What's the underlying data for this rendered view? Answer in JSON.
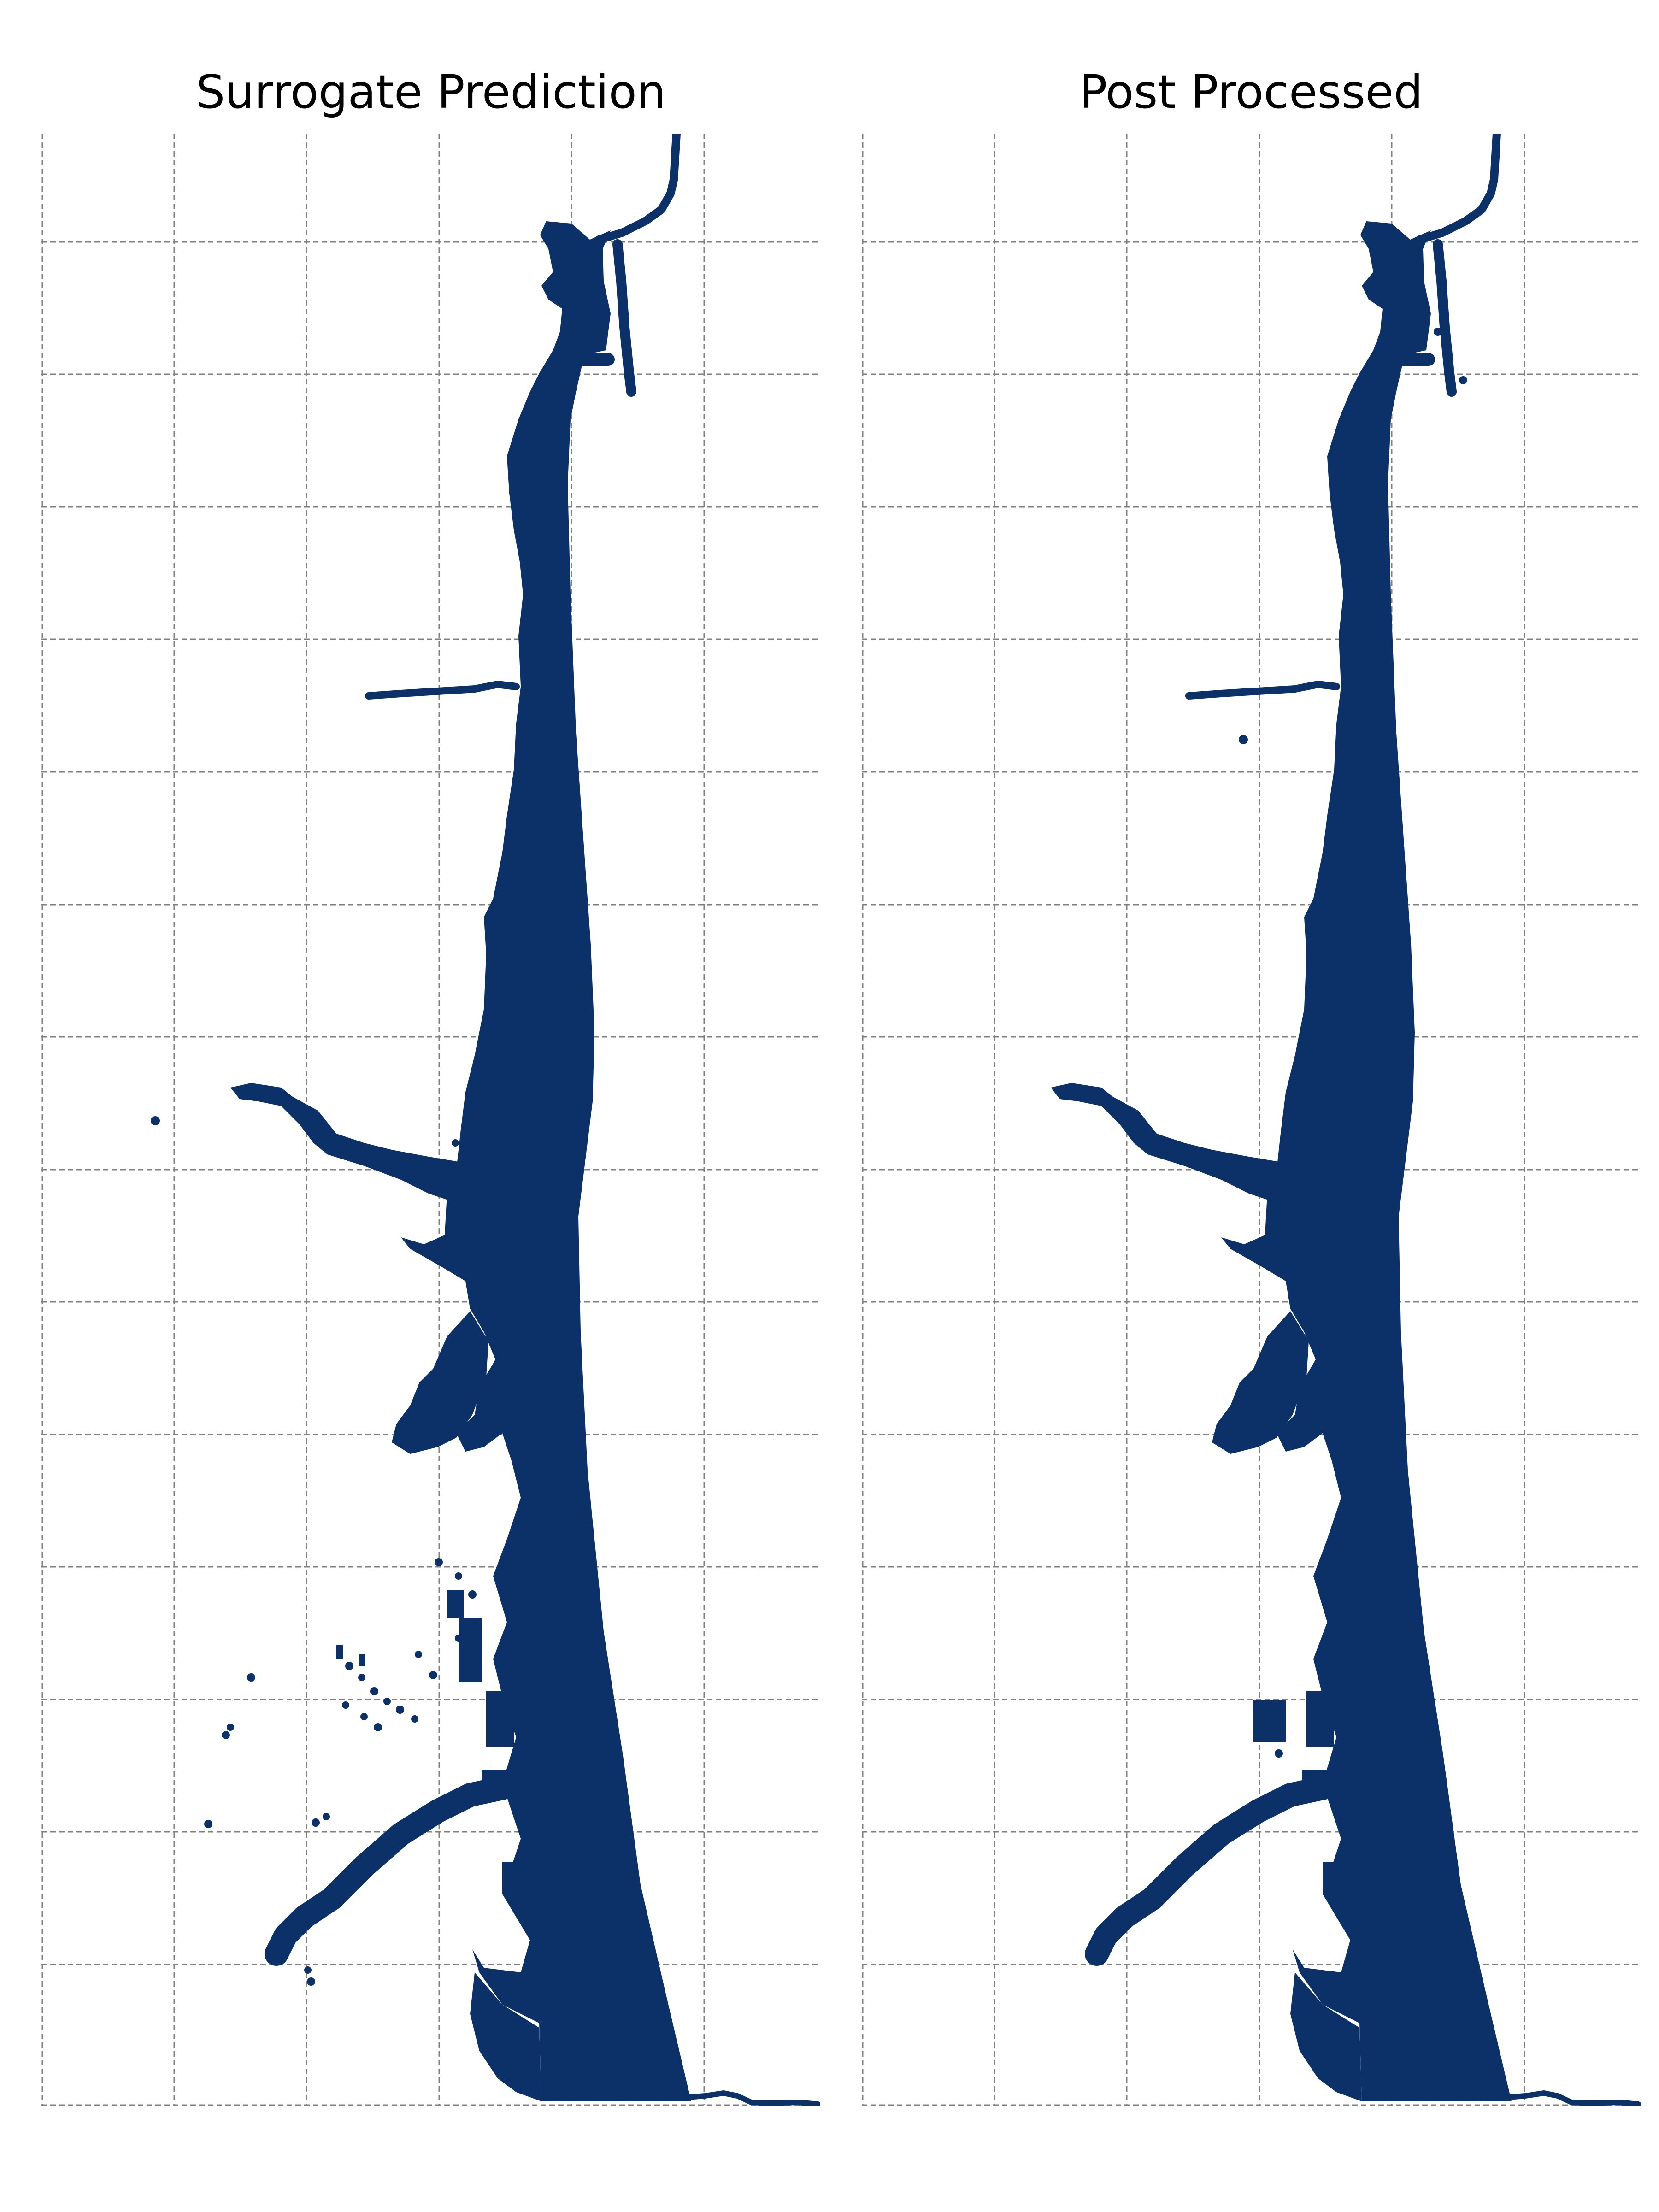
{
  "panels": [
    {
      "title": "Surrogate Prediction",
      "variant": "raw"
    },
    {
      "title": "Post Processed",
      "variant": "cleaned"
    }
  ],
  "colors": {
    "flood_extent": "#0b3168",
    "grid": "#808080",
    "background": "#ffffff"
  },
  "grid": {
    "vertical_lines": 6,
    "horizontal_lines": 15,
    "style": "dashed"
  }
}
